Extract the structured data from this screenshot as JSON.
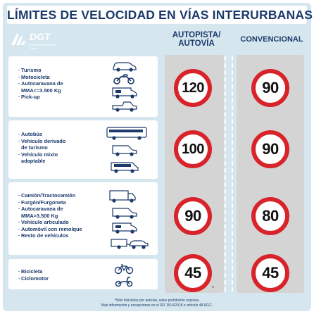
{
  "title": "LÍMITES DE VELOCIDAD EN VÍAS INTERURBANAS",
  "logo": {
    "name": "DGT",
    "subtitle": "Dirección General de Tráfico"
  },
  "columns": {
    "autopista": "AUTOPISTA/\nAUTOVÍA",
    "convencional": "CONVENCIONAL"
  },
  "groups": [
    {
      "items": [
        "Turismo",
        "Motocicleta",
        "Autocaravana de",
        "MMA<=3.500 Kg",
        "Pick-up"
      ],
      "vehicles": [
        "car-icon",
        "motorcycle-icon",
        "motorhome-icon",
        "pickup-icon"
      ],
      "autopista": "120",
      "convencional": "90"
    },
    {
      "items": [
        "Autobús",
        "Vehículo derivado",
        "de turismo",
        "Vehículo mixto",
        "adaptable"
      ],
      "vehicles": [
        "bus-icon",
        "van-icon",
        "minibus-icon"
      ],
      "autopista": "100",
      "convencional": "90"
    },
    {
      "items": [
        "Camión/Tractocamión",
        "Furgón/Furgoneta",
        "Autocaravana de",
        "MMA>3.500 Kg",
        "Vehículo articulado",
        "Automóvil con remolque",
        "Resto de vehículos"
      ],
      "vehicles": [
        "truck-icon",
        "van-icon",
        "motorhome-icon",
        "articulated-icon",
        "car-trailer-icon"
      ],
      "autopista": "90",
      "convencional": "80"
    },
    {
      "items": [
        "Bicicleta",
        "Ciclomotor"
      ],
      "vehicles": [
        "bicycle-icon",
        "moped-icon"
      ],
      "autopista": "45",
      "convencional": "45"
    }
  ],
  "asterisk": "*",
  "footnote1": "*Sólo bicicletas por autovía, salvo prohibición expresa.",
  "footnote2": "Más información y excepciones en el RD 1514/2018 o artículo 48 RGC.",
  "colors": {
    "red": "#d8232a",
    "navy": "#1c3a6b",
    "background": "#d5e6ef",
    "road": "#d4d4d4"
  }
}
